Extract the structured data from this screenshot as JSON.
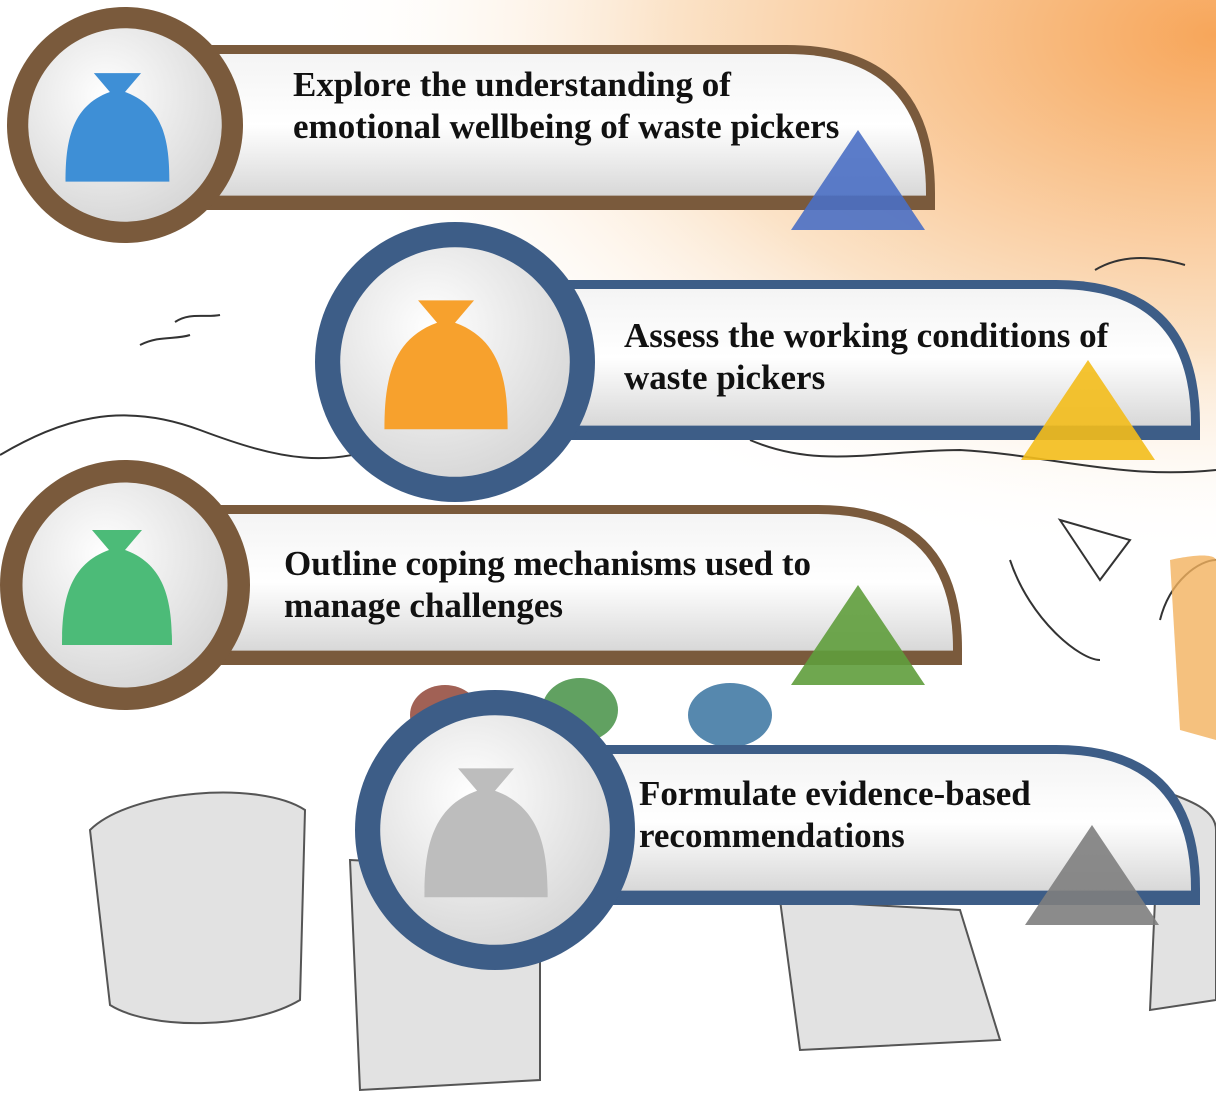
{
  "items": [
    {
      "text": "Explore the understanding of emotional wellbeing of waste pickers"
    },
    {
      "text": "Assess the working conditions of waste pickers"
    },
    {
      "text": "Outline coping mechanisms used to manage challenges"
    },
    {
      "text": "Formulate evidence-based recommendations"
    }
  ]
}
